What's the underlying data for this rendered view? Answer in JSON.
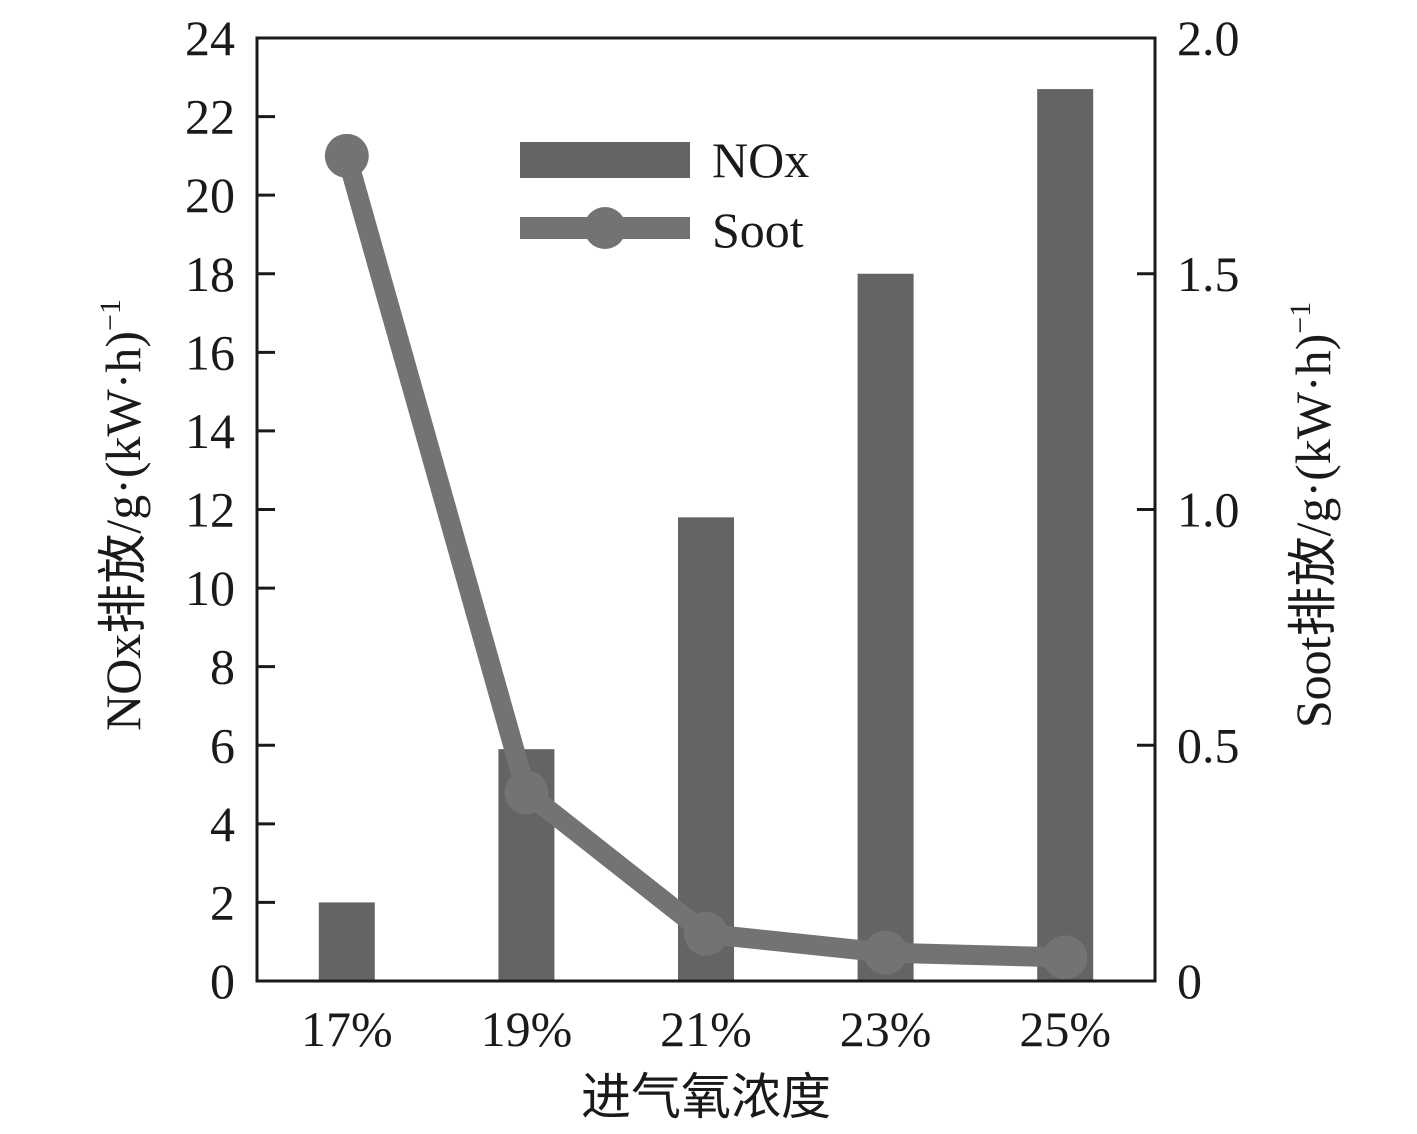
{
  "chart_data": {
    "type": "bar+line",
    "categories": [
      "17%",
      "19%",
      "21%",
      "23%",
      "25%"
    ],
    "series": [
      {
        "name": "NOx",
        "kind": "bar",
        "axis": "left",
        "values": [
          2.0,
          5.9,
          11.8,
          18.0,
          22.7
        ],
        "color": "#646464"
      },
      {
        "name": "Soot",
        "kind": "line",
        "axis": "right",
        "values": [
          1.75,
          0.4,
          0.1,
          0.06,
          0.05
        ],
        "color": "#737373"
      }
    ],
    "xlabel": "进气氧浓度",
    "ylabel_left": {
      "main": "NOx排放/g·(kW·h)",
      "sup": "−1"
    },
    "ylabel_right": {
      "main": "Soot排放/g·(kW·h)",
      "sup": "−1"
    },
    "ylim_left": [
      0,
      24
    ],
    "yticks_left": [
      "0",
      "2",
      "4",
      "6",
      "8",
      "10",
      "12",
      "14",
      "16",
      "18",
      "20",
      "22",
      "24"
    ],
    "ylim_right": [
      0,
      2.0
    ],
    "yticks_right": [
      "0",
      "0.5",
      "1.0",
      "1.5",
      "2.0"
    ],
    "legend": {
      "position": "top-center",
      "entries": [
        "NOx",
        "Soot"
      ]
    },
    "grid": false
  }
}
